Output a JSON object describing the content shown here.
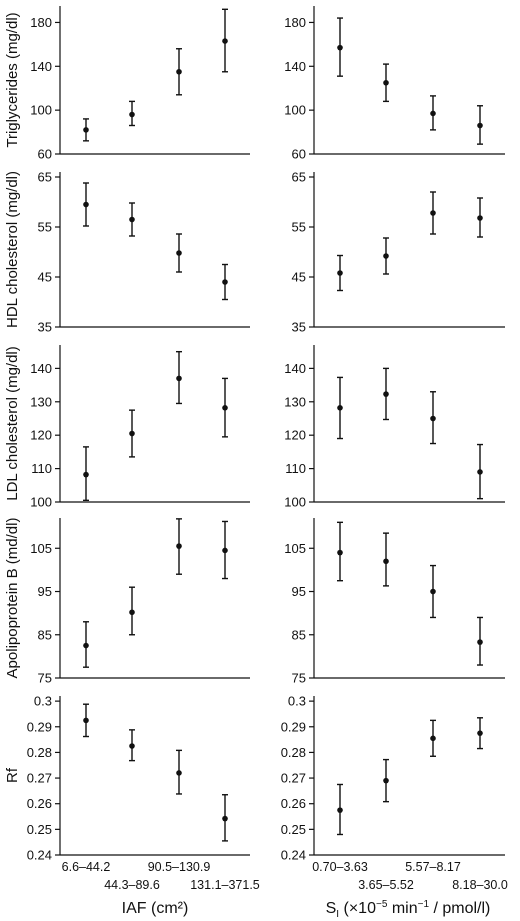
{
  "chart_data": [
    {
      "type": "scatter",
      "panel": "left-row1",
      "ylabel": "Triglycerides (mg/dl)",
      "ylim": [
        60,
        195
      ],
      "yticks": [
        60,
        100,
        140,
        180
      ],
      "points": [
        {
          "mean": 82,
          "lo": 72,
          "hi": 92
        },
        {
          "mean": 96,
          "lo": 86,
          "hi": 108
        },
        {
          "mean": 135,
          "lo": 114,
          "hi": 156
        },
        {
          "mean": 163,
          "lo": 135,
          "hi": 192
        }
      ]
    },
    {
      "type": "scatter",
      "panel": "right-row1",
      "ylabel": "",
      "ylim": [
        60,
        195
      ],
      "yticks": [
        60,
        100,
        140,
        180
      ],
      "points": [
        {
          "mean": 157,
          "lo": 131,
          "hi": 184
        },
        {
          "mean": 125,
          "lo": 108,
          "hi": 142
        },
        {
          "mean": 97,
          "lo": 82,
          "hi": 113
        },
        {
          "mean": 86,
          "lo": 69,
          "hi": 104
        }
      ]
    },
    {
      "type": "scatter",
      "panel": "left-row2",
      "ylabel": "HDL cholesterol (mg/dl)",
      "ylim": [
        35,
        66
      ],
      "yticks": [
        35,
        45,
        55,
        65
      ],
      "points": [
        {
          "mean": 59.5,
          "lo": 55.2,
          "hi": 63.8
        },
        {
          "mean": 56.5,
          "lo": 53.2,
          "hi": 59.8
        },
        {
          "mean": 49.8,
          "lo": 46,
          "hi": 53.6
        },
        {
          "mean": 44,
          "lo": 40.5,
          "hi": 47.5
        }
      ]
    },
    {
      "type": "scatter",
      "panel": "right-row2",
      "ylabel": "",
      "ylim": [
        35,
        66
      ],
      "yticks": [
        35,
        45,
        55,
        65
      ],
      "points": [
        {
          "mean": 45.8,
          "lo": 42.3,
          "hi": 49.3
        },
        {
          "mean": 49.2,
          "lo": 45.6,
          "hi": 52.8
        },
        {
          "mean": 57.8,
          "lo": 53.6,
          "hi": 62
        },
        {
          "mean": 56.8,
          "lo": 53,
          "hi": 60.8
        }
      ]
    },
    {
      "type": "scatter",
      "panel": "left-row3",
      "ylabel": "LDL cholesterol (mg/dl)",
      "ylim": [
        100,
        147
      ],
      "yticks": [
        100,
        110,
        120,
        130,
        140
      ],
      "points": [
        {
          "mean": 108.2,
          "lo": 100.5,
          "hi": 116.5
        },
        {
          "mean": 120.5,
          "lo": 113.5,
          "hi": 127.5
        },
        {
          "mean": 137,
          "lo": 129.5,
          "hi": 145
        },
        {
          "mean": 128.2,
          "lo": 119.5,
          "hi": 137
        }
      ]
    },
    {
      "type": "scatter",
      "panel": "right-row3",
      "ylabel": "",
      "ylim": [
        100,
        147
      ],
      "yticks": [
        100,
        110,
        120,
        130,
        140
      ],
      "points": [
        {
          "mean": 128.2,
          "lo": 119,
          "hi": 137.3
        },
        {
          "mean": 132.3,
          "lo": 124.7,
          "hi": 140
        },
        {
          "mean": 125,
          "lo": 117.5,
          "hi": 133
        },
        {
          "mean": 109,
          "lo": 101,
          "hi": 117.2
        }
      ]
    },
    {
      "type": "scatter",
      "panel": "left-row4",
      "ylabel": "Apolipoprotein B (md/dl)",
      "ylim": [
        75,
        112
      ],
      "yticks": [
        75,
        85,
        95,
        105
      ],
      "points": [
        {
          "mean": 82.5,
          "lo": 77.5,
          "hi": 88
        },
        {
          "mean": 90.2,
          "lo": 85,
          "hi": 96
        },
        {
          "mean": 105.5,
          "lo": 99,
          "hi": 111.8
        },
        {
          "mean": 104.5,
          "lo": 98,
          "hi": 111.2
        }
      ]
    },
    {
      "type": "scatter",
      "panel": "right-row4",
      "ylabel": "",
      "ylim": [
        75,
        112
      ],
      "yticks": [
        75,
        85,
        95,
        105
      ],
      "points": [
        {
          "mean": 104,
          "lo": 97.5,
          "hi": 111
        },
        {
          "mean": 102,
          "lo": 96.3,
          "hi": 108.5
        },
        {
          "mean": 95,
          "lo": 89,
          "hi": 101
        },
        {
          "mean": 83.3,
          "lo": 78,
          "hi": 89
        }
      ]
    },
    {
      "type": "scatter",
      "panel": "left-row5",
      "ylabel": "Rf",
      "ylim": [
        0.24,
        0.302
      ],
      "yticks": [
        0.24,
        0.25,
        0.26,
        0.27,
        0.28,
        0.29,
        0.3
      ],
      "points": [
        {
          "mean": 0.2925,
          "lo": 0.2862,
          "hi": 0.2988
        },
        {
          "mean": 0.2825,
          "lo": 0.2768,
          "hi": 0.2888
        },
        {
          "mean": 0.272,
          "lo": 0.2638,
          "hi": 0.2808
        },
        {
          "mean": 0.2542,
          "lo": 0.2455,
          "hi": 0.2635
        }
      ]
    },
    {
      "type": "scatter",
      "panel": "right-row5",
      "ylabel": "",
      "ylim": [
        0.24,
        0.302
      ],
      "yticks": [
        0.24,
        0.25,
        0.26,
        0.27,
        0.28,
        0.29,
        0.3
      ],
      "points": [
        {
          "mean": 0.2575,
          "lo": 0.248,
          "hi": 0.2675
        },
        {
          "mean": 0.269,
          "lo": 0.2608,
          "hi": 0.2772
        },
        {
          "mean": 0.2855,
          "lo": 0.2785,
          "hi": 0.2925
        },
        {
          "mean": 0.2875,
          "lo": 0.2815,
          "hi": 0.2935
        }
      ]
    }
  ],
  "tick_labels": {
    "row1": [
      "60",
      "100",
      "140",
      "180"
    ],
    "row2": [
      "35",
      "45",
      "55",
      "65"
    ],
    "row3": [
      "100",
      "110",
      "120",
      "130",
      "140"
    ],
    "row4": [
      "75",
      "85",
      "95",
      "105"
    ],
    "row5": [
      "0.24",
      "0.25",
      "0.26",
      "0.27",
      "0.28",
      "0.29",
      "0.3"
    ]
  },
  "x_axis": {
    "left": {
      "categories": [
        "6.6–44.2",
        "44.3–89.6",
        "90.5–130.9",
        "131.1–371.5"
      ],
      "label": "IAF (cm²)"
    },
    "right": {
      "categories": [
        "0.70–3.63",
        "3.65–5.52",
        "5.57–8.17",
        "8.18–30.0"
      ],
      "label_main": "S",
      "label_sub": "I",
      "label_rest": " (×10",
      "label_exp": "−5",
      "label_tail": " min",
      "label_exp2": "−1",
      "label_end": " / pmol/l)"
    }
  }
}
